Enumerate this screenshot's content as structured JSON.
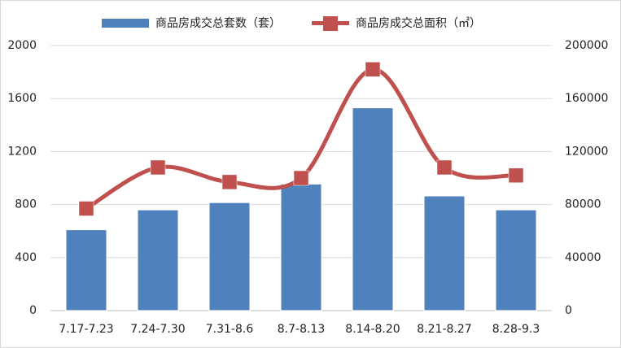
{
  "chart_data": {
    "type": "bar",
    "categories": [
      "7.17-7.23",
      "7.24-7.30",
      "7.31-8.6",
      "8.7-8.13",
      "8.14-8.20",
      "8.21-8.27",
      "8.28-9.3"
    ],
    "series": [
      {
        "name": "商品房成交总套数（套）",
        "type": "bar",
        "color": "#4f81bd",
        "values": [
          610,
          760,
          815,
          955,
          1530,
          865,
          760
        ]
      },
      {
        "name": "商品房成交总面积（㎡）",
        "type": "line",
        "axis": "y2",
        "color": "#c0504d",
        "smooth": true,
        "values": [
          77000,
          108000,
          97000,
          100000,
          182000,
          108000,
          102000
        ]
      }
    ],
    "ylim": [
      0,
      2000
    ],
    "yticks": [
      0,
      400,
      800,
      1200,
      1600,
      2000
    ],
    "y2lim": [
      0,
      200000
    ],
    "y2ticks": [
      0,
      40000,
      80000,
      120000,
      160000,
      200000
    ],
    "grid": true,
    "legend": "top"
  }
}
